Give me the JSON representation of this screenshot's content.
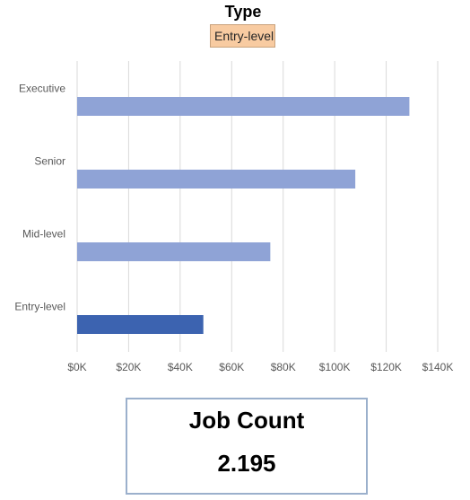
{
  "slicer": {
    "title": "Type",
    "selected": "Entry-level",
    "selected_color": "#f8cba1"
  },
  "chart_data": {
    "type": "bar",
    "orientation": "horizontal",
    "categories": [
      "Executive",
      "Senior",
      "Mid-level",
      "Entry-level"
    ],
    "values": [
      129000,
      108000,
      75000,
      49000
    ],
    "highlighted": "Entry-level",
    "bar_color": "#8fa3d6",
    "highlight_color": "#3c63b0",
    "title": "",
    "xlabel": "",
    "ylabel": "",
    "xlim": [
      0,
      140000
    ],
    "xticks": [
      0,
      20000,
      40000,
      60000,
      80000,
      100000,
      120000,
      140000
    ],
    "xtick_labels": [
      "$0K",
      "$20K",
      "$40K",
      "$60K",
      "$80K",
      "$100K",
      "$120K",
      "$140K"
    ],
    "grid": "vertical",
    "legend": "none"
  },
  "kpi": {
    "label": "Job Count",
    "value": "2.195"
  }
}
